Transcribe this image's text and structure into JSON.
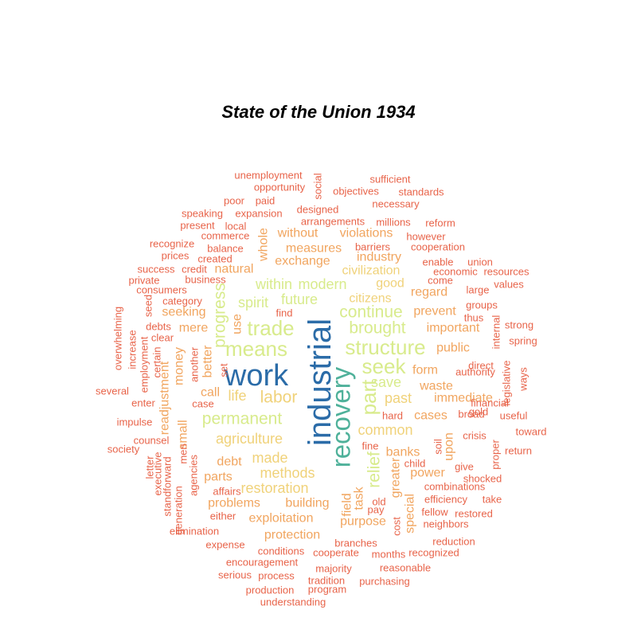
{
  "chart_data": {
    "type": "wordcloud",
    "title": "State of the Union 1934",
    "palette": {
      "tier1": "#2b6ca8",
      "tier2": "#4fb19a",
      "tier3": "#d8eb8c",
      "tier4": "#f0d27a",
      "tier5": "#f1a55f",
      "tier6": "#e8644a"
    },
    "words": [
      {
        "text": "industrial",
        "weight": 10,
        "vertical": true
      },
      {
        "text": "work",
        "weight": 9,
        "vertical": false
      },
      {
        "text": "recovery",
        "weight": 8,
        "vertical": true
      },
      {
        "text": "part",
        "weight": 6,
        "vertical": true
      },
      {
        "text": "means",
        "weight": 6,
        "vertical": false
      },
      {
        "text": "structure",
        "weight": 6,
        "vertical": false
      },
      {
        "text": "seek",
        "weight": 6,
        "vertical": false
      },
      {
        "text": "trade",
        "weight": 6,
        "vertical": false
      },
      {
        "text": "permanent",
        "weight": 5,
        "vertical": false
      },
      {
        "text": "brought",
        "weight": 5,
        "vertical": false
      },
      {
        "text": "continue",
        "weight": 5,
        "vertical": false
      },
      {
        "text": "labor",
        "weight": 5,
        "vertical": false
      },
      {
        "text": "progress",
        "weight": 5,
        "vertical": true
      },
      {
        "text": "relief",
        "weight": 5,
        "vertical": true
      },
      {
        "text": "agriculture",
        "weight": 4,
        "vertical": false
      },
      {
        "text": "common",
        "weight": 4,
        "vertical": false
      },
      {
        "text": "save",
        "weight": 4,
        "vertical": false
      },
      {
        "text": "past",
        "weight": 4,
        "vertical": false
      },
      {
        "text": "within",
        "weight": 4,
        "vertical": false
      },
      {
        "text": "modern",
        "weight": 4,
        "vertical": false
      },
      {
        "text": "future",
        "weight": 4,
        "vertical": false
      },
      {
        "text": "spirit",
        "weight": 4,
        "vertical": false
      },
      {
        "text": "made",
        "weight": 4,
        "vertical": false
      },
      {
        "text": "life",
        "weight": 4,
        "vertical": false
      },
      {
        "text": "methods",
        "weight": 4,
        "vertical": false
      },
      {
        "text": "restoration",
        "weight": 4,
        "vertical": false
      },
      {
        "text": "immediate",
        "weight": 3,
        "vertical": false
      },
      {
        "text": "important",
        "weight": 3,
        "vertical": false
      },
      {
        "text": "prevent",
        "weight": 3,
        "vertical": false
      },
      {
        "text": "waste",
        "weight": 3,
        "vertical": false
      },
      {
        "text": "public",
        "weight": 3,
        "vertical": false
      },
      {
        "text": "regard",
        "weight": 3,
        "vertical": false
      },
      {
        "text": "good",
        "weight": 3,
        "vertical": false
      },
      {
        "text": "civilization",
        "weight": 3,
        "vertical": false
      },
      {
        "text": "industry",
        "weight": 3,
        "vertical": false
      },
      {
        "text": "violations",
        "weight": 3,
        "vertical": false
      },
      {
        "text": "measures",
        "weight": 3,
        "vertical": false
      },
      {
        "text": "exchange",
        "weight": 3,
        "vertical": false
      },
      {
        "text": "without",
        "weight": 3,
        "vertical": false
      },
      {
        "text": "natural",
        "weight": 3,
        "vertical": false
      },
      {
        "text": "seeking",
        "weight": 3,
        "vertical": false
      },
      {
        "text": "mere",
        "weight": 3,
        "vertical": false
      },
      {
        "text": "call",
        "weight": 3,
        "vertical": false
      },
      {
        "text": "debt",
        "weight": 3,
        "vertical": false
      },
      {
        "text": "parts",
        "weight": 3,
        "vertical": false
      },
      {
        "text": "problems",
        "weight": 3,
        "vertical": false
      },
      {
        "text": "building",
        "weight": 3,
        "vertical": false
      },
      {
        "text": "exploitation",
        "weight": 3,
        "vertical": false
      },
      {
        "text": "protection",
        "weight": 3,
        "vertical": false
      },
      {
        "text": "purpose",
        "weight": 3,
        "vertical": false
      },
      {
        "text": "banks",
        "weight": 3,
        "vertical": false
      },
      {
        "text": "power",
        "weight": 3,
        "vertical": false
      },
      {
        "text": "cases",
        "weight": 3,
        "vertical": false
      },
      {
        "text": "form",
        "weight": 3,
        "vertical": false
      },
      {
        "text": "citizens",
        "weight": 3,
        "vertical": false
      },
      {
        "text": "special",
        "weight": 3,
        "vertical": true
      },
      {
        "text": "greater",
        "weight": 3,
        "vertical": true
      },
      {
        "text": "upon",
        "weight": 3,
        "vertical": true
      },
      {
        "text": "task",
        "weight": 3,
        "vertical": true
      },
      {
        "text": "field",
        "weight": 3,
        "vertical": true
      },
      {
        "text": "whole",
        "weight": 3,
        "vertical": true
      },
      {
        "text": "use",
        "weight": 3,
        "vertical": true
      },
      {
        "text": "better",
        "weight": 3,
        "vertical": true
      },
      {
        "text": "money",
        "weight": 3,
        "vertical": true
      },
      {
        "text": "readjustment",
        "weight": 3,
        "vertical": true
      },
      {
        "text": "small",
        "weight": 3,
        "vertical": true
      },
      {
        "text": "unemployment",
        "weight": 1,
        "vertical": false
      },
      {
        "text": "opportunity",
        "weight": 1,
        "vertical": false
      },
      {
        "text": "social",
        "weight": 1,
        "vertical": true
      },
      {
        "text": "sufficient",
        "weight": 1,
        "vertical": false
      },
      {
        "text": "objectives",
        "weight": 1,
        "vertical": false
      },
      {
        "text": "standards",
        "weight": 1,
        "vertical": false
      },
      {
        "text": "poor",
        "weight": 1,
        "vertical": false
      },
      {
        "text": "paid",
        "weight": 1,
        "vertical": false
      },
      {
        "text": "designed",
        "weight": 1,
        "vertical": false
      },
      {
        "text": "necessary",
        "weight": 1,
        "vertical": false
      },
      {
        "text": "speaking",
        "weight": 1,
        "vertical": false
      },
      {
        "text": "expansion",
        "weight": 1,
        "vertical": false
      },
      {
        "text": "arrangements",
        "weight": 1,
        "vertical": false
      },
      {
        "text": "millions",
        "weight": 1,
        "vertical": false
      },
      {
        "text": "reform",
        "weight": 1,
        "vertical": false
      },
      {
        "text": "present",
        "weight": 1,
        "vertical": false
      },
      {
        "text": "local",
        "weight": 1,
        "vertical": false
      },
      {
        "text": "commerce",
        "weight": 1,
        "vertical": false
      },
      {
        "text": "however",
        "weight": 1,
        "vertical": false
      },
      {
        "text": "recognize",
        "weight": 1,
        "vertical": false
      },
      {
        "text": "balance",
        "weight": 1,
        "vertical": false
      },
      {
        "text": "barriers",
        "weight": 1,
        "vertical": false
      },
      {
        "text": "cooperation",
        "weight": 1,
        "vertical": false
      },
      {
        "text": "prices",
        "weight": 1,
        "vertical": false
      },
      {
        "text": "created",
        "weight": 1,
        "vertical": false
      },
      {
        "text": "enable",
        "weight": 1,
        "vertical": false
      },
      {
        "text": "union",
        "weight": 1,
        "vertical": false
      },
      {
        "text": "success",
        "weight": 1,
        "vertical": false
      },
      {
        "text": "credit",
        "weight": 1,
        "vertical": false
      },
      {
        "text": "economic",
        "weight": 1,
        "vertical": false
      },
      {
        "text": "resources",
        "weight": 1,
        "vertical": false
      },
      {
        "text": "private",
        "weight": 1,
        "vertical": false
      },
      {
        "text": "business",
        "weight": 1,
        "vertical": false
      },
      {
        "text": "come",
        "weight": 1,
        "vertical": false
      },
      {
        "text": "consumers",
        "weight": 1,
        "vertical": false
      },
      {
        "text": "large",
        "weight": 1,
        "vertical": false
      },
      {
        "text": "values",
        "weight": 1,
        "vertical": false
      },
      {
        "text": "category",
        "weight": 1,
        "vertical": false
      },
      {
        "text": "groups",
        "weight": 1,
        "vertical": false
      },
      {
        "text": "find",
        "weight": 1,
        "vertical": false
      },
      {
        "text": "thus",
        "weight": 1,
        "vertical": false
      },
      {
        "text": "strong",
        "weight": 1,
        "vertical": false
      },
      {
        "text": "debts",
        "weight": 1,
        "vertical": false
      },
      {
        "text": "spring",
        "weight": 1,
        "vertical": false
      },
      {
        "text": "clear",
        "weight": 1,
        "vertical": false
      },
      {
        "text": "internal",
        "weight": 1,
        "vertical": true
      },
      {
        "text": "overwhelming",
        "weight": 1,
        "vertical": true
      },
      {
        "text": "increase",
        "weight": 1,
        "vertical": true
      },
      {
        "text": "seed",
        "weight": 1,
        "vertical": true
      },
      {
        "text": "employment",
        "weight": 1,
        "vertical": true
      },
      {
        "text": "certain",
        "weight": 1,
        "vertical": true
      },
      {
        "text": "another",
        "weight": 1,
        "vertical": true
      },
      {
        "text": "set",
        "weight": 1,
        "vertical": true
      },
      {
        "text": "direct",
        "weight": 1,
        "vertical": false
      },
      {
        "text": "authority",
        "weight": 1,
        "vertical": false
      },
      {
        "text": "legislative",
        "weight": 1,
        "vertical": true
      },
      {
        "text": "financial",
        "weight": 1,
        "vertical": false
      },
      {
        "text": "gold",
        "weight": 1,
        "vertical": false
      },
      {
        "text": "ways",
        "weight": 1,
        "vertical": true
      },
      {
        "text": "several",
        "weight": 1,
        "vertical": false
      },
      {
        "text": "enter",
        "weight": 1,
        "vertical": false
      },
      {
        "text": "case",
        "weight": 1,
        "vertical": false
      },
      {
        "text": "hard",
        "weight": 1,
        "vertical": false
      },
      {
        "text": "broad",
        "weight": 1,
        "vertical": false
      },
      {
        "text": "useful",
        "weight": 1,
        "vertical": false
      },
      {
        "text": "impulse",
        "weight": 1,
        "vertical": false
      },
      {
        "text": "crisis",
        "weight": 1,
        "vertical": false
      },
      {
        "text": "toward",
        "weight": 1,
        "vertical": false
      },
      {
        "text": "counsel",
        "weight": 1,
        "vertical": false
      },
      {
        "text": "fine",
        "weight": 1,
        "vertical": false
      },
      {
        "text": "soil",
        "weight": 1,
        "vertical": true
      },
      {
        "text": "society",
        "weight": 1,
        "vertical": false
      },
      {
        "text": "child",
        "weight": 1,
        "vertical": false
      },
      {
        "text": "give",
        "weight": 1,
        "vertical": false
      },
      {
        "text": "proper",
        "weight": 1,
        "vertical": true
      },
      {
        "text": "return",
        "weight": 1,
        "vertical": false
      },
      {
        "text": "letter",
        "weight": 1,
        "vertical": true
      },
      {
        "text": "executive",
        "weight": 1,
        "vertical": true
      },
      {
        "text": "men",
        "weight": 1,
        "vertical": true
      },
      {
        "text": "agencies",
        "weight": 1,
        "vertical": true
      },
      {
        "text": "shocked",
        "weight": 1,
        "vertical": false
      },
      {
        "text": "combinations",
        "weight": 1,
        "vertical": false
      },
      {
        "text": "standforward",
        "weight": 1,
        "vertical": true
      },
      {
        "text": "affairs",
        "weight": 1,
        "vertical": false
      },
      {
        "text": "old",
        "weight": 1,
        "vertical": false
      },
      {
        "text": "efficiency",
        "weight": 1,
        "vertical": false
      },
      {
        "text": "take",
        "weight": 1,
        "vertical": false
      },
      {
        "text": "generation",
        "weight": 1,
        "vertical": true
      },
      {
        "text": "either",
        "weight": 1,
        "vertical": false
      },
      {
        "text": "pay",
        "weight": 1,
        "vertical": false
      },
      {
        "text": "fellow",
        "weight": 1,
        "vertical": false
      },
      {
        "text": "restored",
        "weight": 1,
        "vertical": false
      },
      {
        "text": "cost",
        "weight": 1,
        "vertical": true
      },
      {
        "text": "neighbors",
        "weight": 1,
        "vertical": false
      },
      {
        "text": "elimination",
        "weight": 1,
        "vertical": false
      },
      {
        "text": "expense",
        "weight": 1,
        "vertical": false
      },
      {
        "text": "branches",
        "weight": 1,
        "vertical": false
      },
      {
        "text": "reduction",
        "weight": 1,
        "vertical": false
      },
      {
        "text": "conditions",
        "weight": 1,
        "vertical": false
      },
      {
        "text": "cooperate",
        "weight": 1,
        "vertical": false
      },
      {
        "text": "months",
        "weight": 1,
        "vertical": false
      },
      {
        "text": "recognized",
        "weight": 1,
        "vertical": false
      },
      {
        "text": "encouragement",
        "weight": 1,
        "vertical": false
      },
      {
        "text": "majority",
        "weight": 1,
        "vertical": false
      },
      {
        "text": "reasonable",
        "weight": 1,
        "vertical": false
      },
      {
        "text": "serious",
        "weight": 1,
        "vertical": false
      },
      {
        "text": "process",
        "weight": 1,
        "vertical": false
      },
      {
        "text": "tradition",
        "weight": 1,
        "vertical": false
      },
      {
        "text": "purchasing",
        "weight": 1,
        "vertical": false
      },
      {
        "text": "production",
        "weight": 1,
        "vertical": false
      },
      {
        "text": "program",
        "weight": 1,
        "vertical": false
      },
      {
        "text": "understanding",
        "weight": 1,
        "vertical": false
      }
    ]
  }
}
